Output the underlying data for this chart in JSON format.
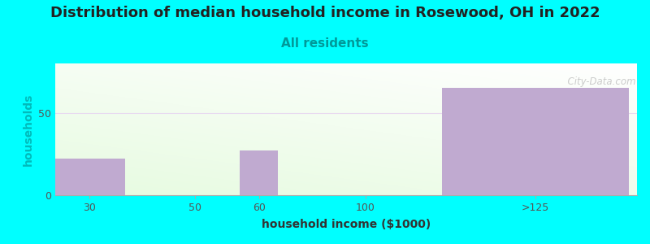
{
  "title": "Distribution of median household income in Rosewood, OH in 2022",
  "subtitle": "All residents",
  "xlabel": "household income ($1000)",
  "ylabel": "households",
  "background_color": "#00FFFF",
  "bar_color": "#c0aad0",
  "ylim": [
    0,
    80
  ],
  "yticks": [
    0,
    50
  ],
  "grid_color": "#e8d8f0",
  "grid_y": 50,
  "watermark": "  City-Data.com",
  "title_fontsize": 13,
  "subtitle_fontsize": 11,
  "axis_label_fontsize": 10,
  "tick_fontsize": 9,
  "title_color": "#222222",
  "subtitle_color": "#009999",
  "ylabel_color": "#00bbbb",
  "xlabel_color": "#333333",
  "tick_color": "#555555",
  "bar_positions": [
    0.25,
    1.5,
    2.25,
    3.5,
    5.5
  ],
  "bar_widths": [
    0.85,
    0.0,
    0.45,
    0.0,
    2.2
  ],
  "bar_heights": [
    22,
    0,
    27,
    0,
    65
  ],
  "tick_positions": [
    0.25,
    1.5,
    2.25,
    3.5,
    5.5
  ],
  "tick_labels": [
    "30",
    "50",
    "60",
    "100",
    ">125"
  ],
  "xlim": [
    -0.15,
    6.7
  ]
}
